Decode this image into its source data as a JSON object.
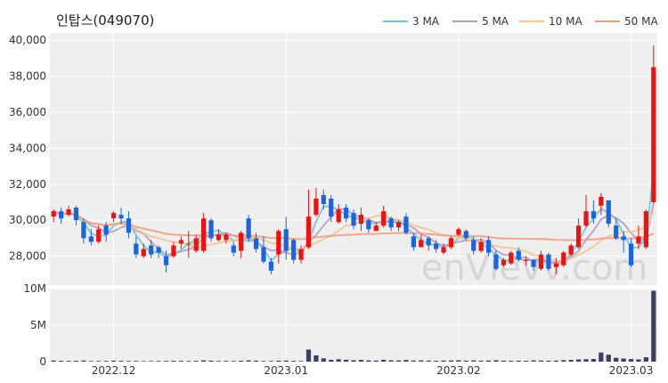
{
  "chart_data": {
    "title": "인탑스(049070)",
    "type": "candlestick",
    "watermark": "enVievv.com",
    "legend": {
      "placement": "top-right",
      "entries": [
        {
          "name": "3 MA",
          "color": "#6cc7d2"
        },
        {
          "name": "5 MA",
          "color": "#b49ac4"
        },
        {
          "name": "10 MA",
          "color": "#f2c48a"
        },
        {
          "name": "50 MA",
          "color": "#ee9a80"
        }
      ]
    },
    "colors": {
      "up": "#ee1111",
      "down": "#1b64e0",
      "volume": "#3b3f66",
      "panel_bg": "#efefef",
      "grid": "#ffffff"
    },
    "price_axis": {
      "ylim": [
        26400,
        40400
      ],
      "ticks": [
        "40,000",
        "38,000",
        "36,000",
        "34,000",
        "32,000",
        "30,000",
        "28,000"
      ],
      "tick_values": [
        40000,
        38000,
        36000,
        34000,
        32000,
        30000,
        28000
      ]
    },
    "volume_axis": {
      "ylim": [
        0,
        10000000
      ],
      "ticks": [
        "10M",
        "5M",
        "0"
      ],
      "tick_values": [
        10000000,
        5000000,
        0
      ]
    },
    "x_axis": {
      "labels": [
        {
          "text": "2022.12",
          "index": 8
        },
        {
          "text": "2023.01",
          "index": 31
        },
        {
          "text": "2023.02",
          "index": 54
        },
        {
          "text": "2023.03",
          "index": 77
        }
      ]
    },
    "candles": [
      [
        30200,
        30500,
        29900,
        30600
      ],
      [
        30500,
        30100,
        29800,
        30700
      ],
      [
        30300,
        30600,
        30200,
        30800
      ],
      [
        30700,
        30000,
        29700,
        30800
      ],
      [
        29900,
        29000,
        28700,
        30100
      ],
      [
        29100,
        28800,
        28600,
        29500
      ],
      [
        28800,
        29500,
        28700,
        29700
      ],
      [
        29700,
        29200,
        28800,
        29900
      ],
      [
        30100,
        30400,
        29900,
        30500
      ],
      [
        30300,
        30100,
        29800,
        30700
      ],
      [
        30100,
        29300,
        29000,
        30500
      ],
      [
        28700,
        28100,
        27900,
        29100
      ],
      [
        28000,
        28400,
        27900,
        28700
      ],
      [
        28600,
        28100,
        27900,
        28900
      ],
      [
        28500,
        28200,
        27900,
        28600
      ],
      [
        28000,
        27500,
        27100,
        28300
      ],
      [
        28000,
        28600,
        27900,
        28800
      ],
      [
        28700,
        28900,
        28400,
        29100
      ],
      [
        28700,
        28700,
        27900,
        29400
      ],
      [
        28300,
        29000,
        28200,
        29200
      ],
      [
        28300,
        30100,
        28200,
        30400
      ],
      [
        30000,
        29000,
        28800,
        30100
      ],
      [
        28900,
        29200,
        28800,
        29500
      ],
      [
        28900,
        29200,
        28700,
        29300
      ],
      [
        28600,
        28200,
        28000,
        28800
      ],
      [
        28300,
        29300,
        27900,
        29400
      ],
      [
        30100,
        29000,
        28800,
        30300
      ],
      [
        29000,
        28400,
        28200,
        29300
      ],
      [
        28500,
        27700,
        27600,
        29100
      ],
      [
        27700,
        27200,
        27000,
        27900
      ],
      [
        28100,
        29400,
        27600,
        29500
      ],
      [
        29500,
        28300,
        27800,
        30200
      ],
      [
        28900,
        27800,
        27600,
        29000
      ],
      [
        27800,
        28400,
        27600,
        28600
      ],
      [
        28500,
        30200,
        28400,
        31700
      ],
      [
        30300,
        31200,
        30200,
        31800
      ],
      [
        31400,
        30900,
        30600,
        31700
      ],
      [
        31200,
        30200,
        29900,
        31400
      ],
      [
        29900,
        30600,
        29800,
        30900
      ],
      [
        30700,
        30100,
        29900,
        30900
      ],
      [
        30400,
        29700,
        29500,
        30600
      ],
      [
        29800,
        30300,
        29400,
        30700
      ],
      [
        30000,
        29500,
        29300,
        30100
      ],
      [
        29400,
        29700,
        29400,
        29900
      ],
      [
        29700,
        30500,
        29600,
        30800
      ],
      [
        30100,
        29600,
        29400,
        30200
      ],
      [
        29600,
        29900,
        29400,
        30000
      ],
      [
        30200,
        29300,
        29200,
        30400
      ],
      [
        29100,
        28500,
        28300,
        29300
      ],
      [
        28500,
        28900,
        28500,
        29200
      ],
      [
        29000,
        28600,
        28300,
        29100
      ],
      [
        28700,
        28400,
        28200,
        28900
      ],
      [
        28200,
        28500,
        28100,
        28700
      ],
      [
        28500,
        29000,
        28400,
        29100
      ],
      [
        29200,
        29500,
        29100,
        29600
      ],
      [
        29400,
        29000,
        28900,
        29500
      ],
      [
        28900,
        28300,
        28100,
        29100
      ],
      [
        28300,
        28800,
        28200,
        29000
      ],
      [
        28900,
        28200,
        28000,
        29100
      ],
      [
        28100,
        27300,
        27200,
        28300
      ],
      [
        27500,
        27800,
        27400,
        27900
      ],
      [
        27600,
        28200,
        27500,
        28300
      ],
      [
        28300,
        27800,
        27700,
        28500
      ],
      [
        27800,
        27800,
        27500,
        28000
      ],
      [
        27800,
        27400,
        27200,
        27800
      ],
      [
        27300,
        28100,
        27200,
        28300
      ],
      [
        28100,
        27300,
        27200,
        28200
      ],
      [
        27400,
        27600,
        27000,
        27900
      ],
      [
        27500,
        28200,
        27400,
        28300
      ],
      [
        28100,
        28600,
        28000,
        28700
      ],
      [
        28500,
        29700,
        28400,
        30100
      ],
      [
        29700,
        30500,
        29600,
        31400
      ],
      [
        30500,
        30100,
        29800,
        31100
      ],
      [
        30800,
        31300,
        30300,
        31500
      ],
      [
        31100,
        29800,
        29600,
        31000
      ],
      [
        29700,
        29000,
        28900,
        30100
      ],
      [
        29100,
        28900,
        28200,
        29400
      ],
      [
        28700,
        27500,
        27400,
        29000
      ],
      [
        28700,
        29100,
        28400,
        29700
      ],
      [
        28500,
        30500,
        28400,
        30600
      ],
      [
        31000,
        38500,
        30900,
        39700
      ]
    ],
    "volume": [
      150000,
      120000,
      100000,
      120000,
      150000,
      80000,
      90000,
      100000,
      140000,
      110000,
      90000,
      100000,
      70000,
      80000,
      90000,
      100000,
      120000,
      110000,
      90000,
      100000,
      170000,
      130000,
      90000,
      100000,
      90000,
      120000,
      170000,
      130000,
      90000,
      90000,
      130000,
      150000,
      110000,
      90000,
      1650000,
      850000,
      450000,
      250000,
      320000,
      260000,
      190000,
      230000,
      170000,
      150000,
      250000,
      180000,
      160000,
      220000,
      150000,
      170000,
      140000,
      120000,
      150000,
      160000,
      190000,
      140000,
      160000,
      130000,
      150000,
      190000,
      140000,
      120000,
      130000,
      120000,
      170000,
      150000,
      130000,
      140000,
      200000,
      230000,
      300000,
      330000,
      360000,
      1250000,
      950000,
      520000,
      420000,
      350000,
      300000,
      600000,
      9700000
    ]
  }
}
